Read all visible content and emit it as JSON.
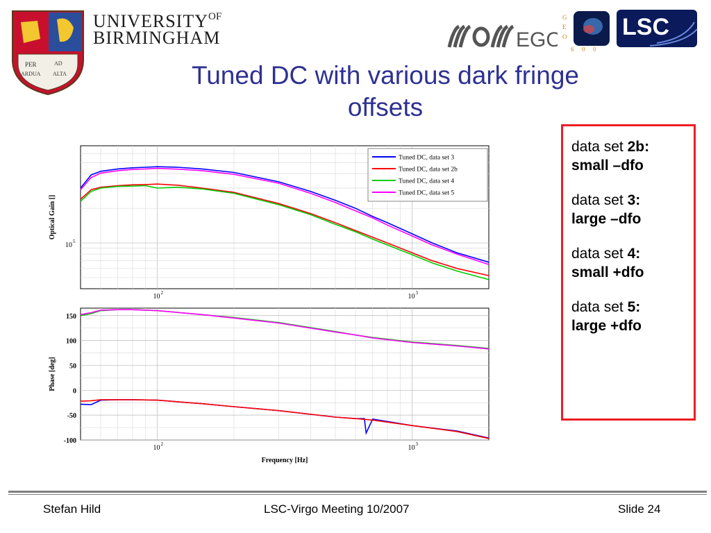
{
  "header": {
    "university_line1": "UNIVERSITY",
    "university_of": "OF",
    "university_line2": "BIRMINGHAM",
    "ego_text": "EGO",
    "lsc_text": "LSC",
    "geo_letters": [
      "G",
      "E",
      "O",
      "6",
      "0",
      "0"
    ],
    "crest_motto": [
      "PER",
      "AD",
      "ARDUA",
      "ALTA"
    ]
  },
  "slide": {
    "title_line1": "Tuned DC with various dark fringe",
    "title_line2": "offsets"
  },
  "notes": [
    {
      "prefix": "data set ",
      "set": "2b:",
      "desc": "small –dfo"
    },
    {
      "prefix": "data set ",
      "set": "3:",
      "desc": "large –dfo"
    },
    {
      "prefix": "data set ",
      "set": "4:",
      "desc": "small +dfo"
    },
    {
      "prefix": "data set ",
      "set": "5:",
      "desc": "large +dfo"
    }
  ],
  "footer": {
    "author": "Stefan Hild",
    "meeting": "LSC-Virgo Meeting 10/2007",
    "slide": "Slide 24"
  },
  "colors": {
    "title": "#2e3192",
    "box_border": "#ee1c25",
    "set3": "#0000ff",
    "set2b": "#ff0000",
    "set4": "#00cc00",
    "set5": "#ff00ff"
  },
  "chart_data": [
    {
      "type": "line",
      "title": "",
      "xlabel": "",
      "ylabel": "Optical Gain []",
      "x_scale": "log",
      "y_scale": "log",
      "xlim": [
        50,
        2000
      ],
      "ylim": [
        40000,
        700000
      ],
      "x_ticks": [
        {
          "value": 100,
          "label": "10",
          "sup": "2"
        },
        {
          "value": 1000,
          "label": "10",
          "sup": "3"
        }
      ],
      "y_ticks": [
        {
          "value": 100000,
          "label": "10",
          "sup": "5"
        }
      ],
      "grid": true,
      "legend_position": "top-right",
      "series": [
        {
          "name": "Tuned DC, data set 3",
          "color": "#0000ff",
          "x": [
            50,
            55,
            60,
            70,
            80,
            90,
            100,
            120,
            150,
            200,
            300,
            400,
            500,
            600,
            700,
            800,
            1000,
            1200,
            1500,
            2000
          ],
          "y": [
            300000,
            390000,
            420000,
            440000,
            450000,
            455000,
            460000,
            455000,
            440000,
            410000,
            340000,
            280000,
            235000,
            200000,
            170000,
            150000,
            120000,
            100000,
            82000,
            68000
          ]
        },
        {
          "name": "Tuned DC, data set 2b",
          "color": "#ff0000",
          "x": [
            50,
            55,
            60,
            70,
            80,
            90,
            100,
            120,
            150,
            200,
            300,
            400,
            500,
            600,
            700,
            800,
            1000,
            1200,
            1500,
            2000
          ],
          "y": [
            240000,
            290000,
            305000,
            315000,
            320000,
            322000,
            325000,
            318000,
            300000,
            275000,
            220000,
            180000,
            150000,
            128000,
            112000,
            100000,
            82000,
            70000,
            60000,
            52000
          ]
        },
        {
          "name": "Tuned DC, data set 4",
          "color": "#00cc00",
          "x": [
            50,
            55,
            60,
            70,
            80,
            90,
            100,
            120,
            150,
            200,
            300,
            400,
            500,
            600,
            700,
            800,
            1000,
            1200,
            1500,
            2000
          ],
          "y": [
            230000,
            280000,
            300000,
            310000,
            312000,
            315000,
            300000,
            305000,
            295000,
            270000,
            215000,
            176000,
            145000,
            125000,
            108000,
            96000,
            79000,
            67000,
            57000,
            48000
          ]
        },
        {
          "name": "Tuned DC, data set 5",
          "color": "#ff00ff",
          "x": [
            50,
            55,
            60,
            70,
            80,
            90,
            100,
            120,
            150,
            200,
            300,
            400,
            500,
            600,
            700,
            800,
            1000,
            1200,
            1500,
            2000
          ],
          "y": [
            290000,
            370000,
            405000,
            425000,
            435000,
            440000,
            445000,
            438000,
            425000,
            395000,
            330000,
            270000,
            225000,
            190000,
            165000,
            143000,
            115000,
            96000,
            80000,
            65000
          ]
        }
      ]
    },
    {
      "type": "line",
      "title": "",
      "xlabel": "Frequency [Hz]",
      "ylabel": "Phase [deg]",
      "x_scale": "log",
      "xlim": [
        50,
        2000
      ],
      "ylim": [
        -100,
        165
      ],
      "x_ticks": [
        {
          "value": 100,
          "label": "10",
          "sup": "2"
        },
        {
          "value": 1000,
          "label": "10",
          "sup": "3"
        }
      ],
      "y_ticks": [
        -100,
        -50,
        0,
        50,
        100,
        150
      ],
      "grid": true,
      "series": [
        {
          "name": "Tuned DC, data set 3",
          "color": "#0000ff",
          "x": [
            50,
            55,
            60,
            70,
            80,
            100,
            150,
            200,
            300,
            500,
            600,
            650,
            660,
            700,
            1000,
            1500,
            2000
          ],
          "y": [
            -28,
            -29,
            -20,
            -19,
            -19,
            -20,
            -27,
            -33,
            -41,
            -54,
            -57,
            -57,
            -86,
            -58,
            -71,
            -82,
            -96
          ]
        },
        {
          "name": "Tuned DC, data set 2b",
          "color": "#ff0000",
          "x": [
            50,
            55,
            60,
            70,
            80,
            100,
            150,
            200,
            300,
            500,
            600,
            700,
            1000,
            1500,
            2000
          ],
          "y": [
            -22,
            -21,
            -19,
            -19,
            -19,
            -20,
            -27,
            -33,
            -41,
            -54,
            -57,
            -60,
            -71,
            -83,
            -97
          ]
        },
        {
          "name": "Tuned DC, data set 4",
          "color": "#00cc00",
          "x": [
            50,
            55,
            60,
            70,
            80,
            100,
            150,
            200,
            300,
            500,
            600,
            700,
            1000,
            1500,
            2000
          ],
          "y": [
            150,
            154,
            160,
            162,
            162,
            160,
            152,
            146,
            136,
            118,
            111,
            106,
            97,
            90,
            84
          ]
        },
        {
          "name": "Tuned DC, data set 5",
          "color": "#ff00ff",
          "x": [
            50,
            55,
            60,
            70,
            80,
            100,
            150,
            200,
            300,
            500,
            600,
            700,
            1000,
            1500,
            2000
          ],
          "y": [
            152,
            156,
            161,
            162,
            162,
            160,
            152,
            145,
            135,
            117,
            111,
            105,
            96,
            89,
            83
          ]
        }
      ]
    }
  ]
}
